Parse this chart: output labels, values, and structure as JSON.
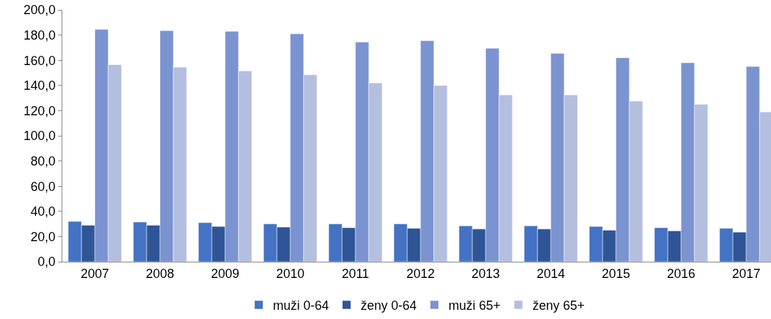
{
  "chart_data": {
    "type": "bar",
    "categories": [
      "2007",
      "2008",
      "2009",
      "2010",
      "2011",
      "2012",
      "2013",
      "2014",
      "2015",
      "2016",
      "2017"
    ],
    "series": [
      {
        "name": "muži 0-64",
        "color": "#4472c4",
        "values": [
          32,
          31.5,
          31,
          30,
          30,
          30,
          28.5,
          28.5,
          28,
          27,
          26.5
        ]
      },
      {
        "name": "ženy 0-64",
        "color": "#2f5597",
        "values": [
          29,
          29,
          28,
          27.5,
          27,
          26.5,
          26,
          26,
          25,
          24.5,
          23.5
        ]
      },
      {
        "name": "muži 65+",
        "color": "#7b93d0",
        "values": [
          184.5,
          183.5,
          183,
          181,
          174.5,
          175.5,
          169.5,
          165.5,
          162,
          158,
          155
        ]
      },
      {
        "name": "ženy 65+",
        "color": "#b4bedf",
        "values": [
          156.5,
          154.5,
          151.5,
          148.5,
          142,
          140,
          132.5,
          132.5,
          127.5,
          125,
          119
        ]
      }
    ],
    "ylim": [
      0,
      200
    ],
    "yticks": [
      {
        "value": 0,
        "label": "0,0"
      },
      {
        "value": 20,
        "label": "20,0"
      },
      {
        "value": 40,
        "label": "40,0"
      },
      {
        "value": 60,
        "label": "60,0"
      },
      {
        "value": 80,
        "label": "80,0"
      },
      {
        "value": 100,
        "label": "100,0"
      },
      {
        "value": 120,
        "label": "120,0"
      },
      {
        "value": 140,
        "label": "140,0"
      },
      {
        "value": 160,
        "label": "160,0"
      },
      {
        "value": 180,
        "label": "180,0"
      },
      {
        "value": 200,
        "label": "200,0"
      }
    ],
    "grid": false,
    "legend": "bottom"
  }
}
